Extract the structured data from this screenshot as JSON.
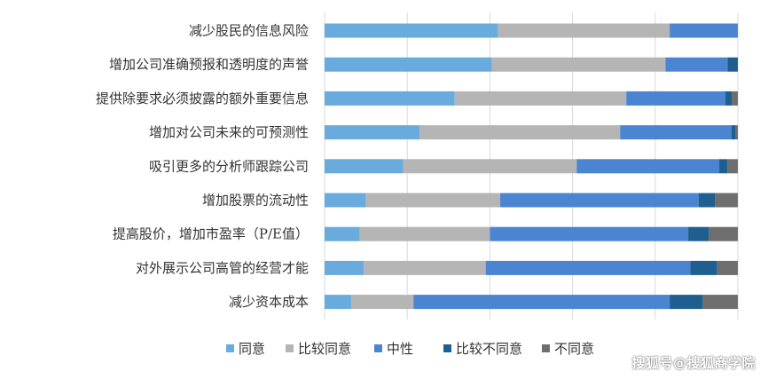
{
  "chart_data": {
    "type": "bar",
    "orientation": "horizontal",
    "stacked": true,
    "normalized": true,
    "title": "",
    "xlabel": "",
    "ylabel": "",
    "xlim": [
      0,
      100
    ],
    "grid": true,
    "legend_position": "bottom",
    "categories": [
      "减少股民的信息风险",
      "增加公司准确预报和透明度的声誉",
      "提供除要求必须披露的额外重要信息",
      "增加对公司未来的可预测性",
      "吸引更多的分析师跟踪公司",
      "增加股票的流动性",
      "提高股价，增加市盈率（P/E值）",
      "对外展示公司高管的经营才能",
      "减少资本成本"
    ],
    "series": [
      {
        "name": "同意",
        "color": "#6aabdd",
        "values": [
          42,
          40.5,
          31.5,
          23,
          19,
          10,
          8.5,
          9.5,
          6.5
        ]
      },
      {
        "name": "比较同意",
        "color": "#b5b5b5",
        "values": [
          41.5,
          42,
          41.5,
          48.5,
          42,
          32.5,
          31.5,
          29.5,
          15
        ]
      },
      {
        "name": "中性",
        "color": "#4b85d2",
        "values": [
          16.5,
          15,
          24,
          27,
          34.5,
          48,
          48,
          49.5,
          62
        ]
      },
      {
        "name": "比较不同意",
        "color": "#1f5f90",
        "values": [
          0,
          2.5,
          1.5,
          1,
          2,
          4,
          5,
          6.5,
          8
        ]
      },
      {
        "name": "不同意",
        "color": "#6e6e6e",
        "values": [
          0,
          0,
          1.5,
          0.5,
          2.5,
          5.5,
          7,
          5,
          8.5
        ]
      }
    ]
  },
  "watermark": {
    "text": "搜狐号@搜狐商学院"
  }
}
